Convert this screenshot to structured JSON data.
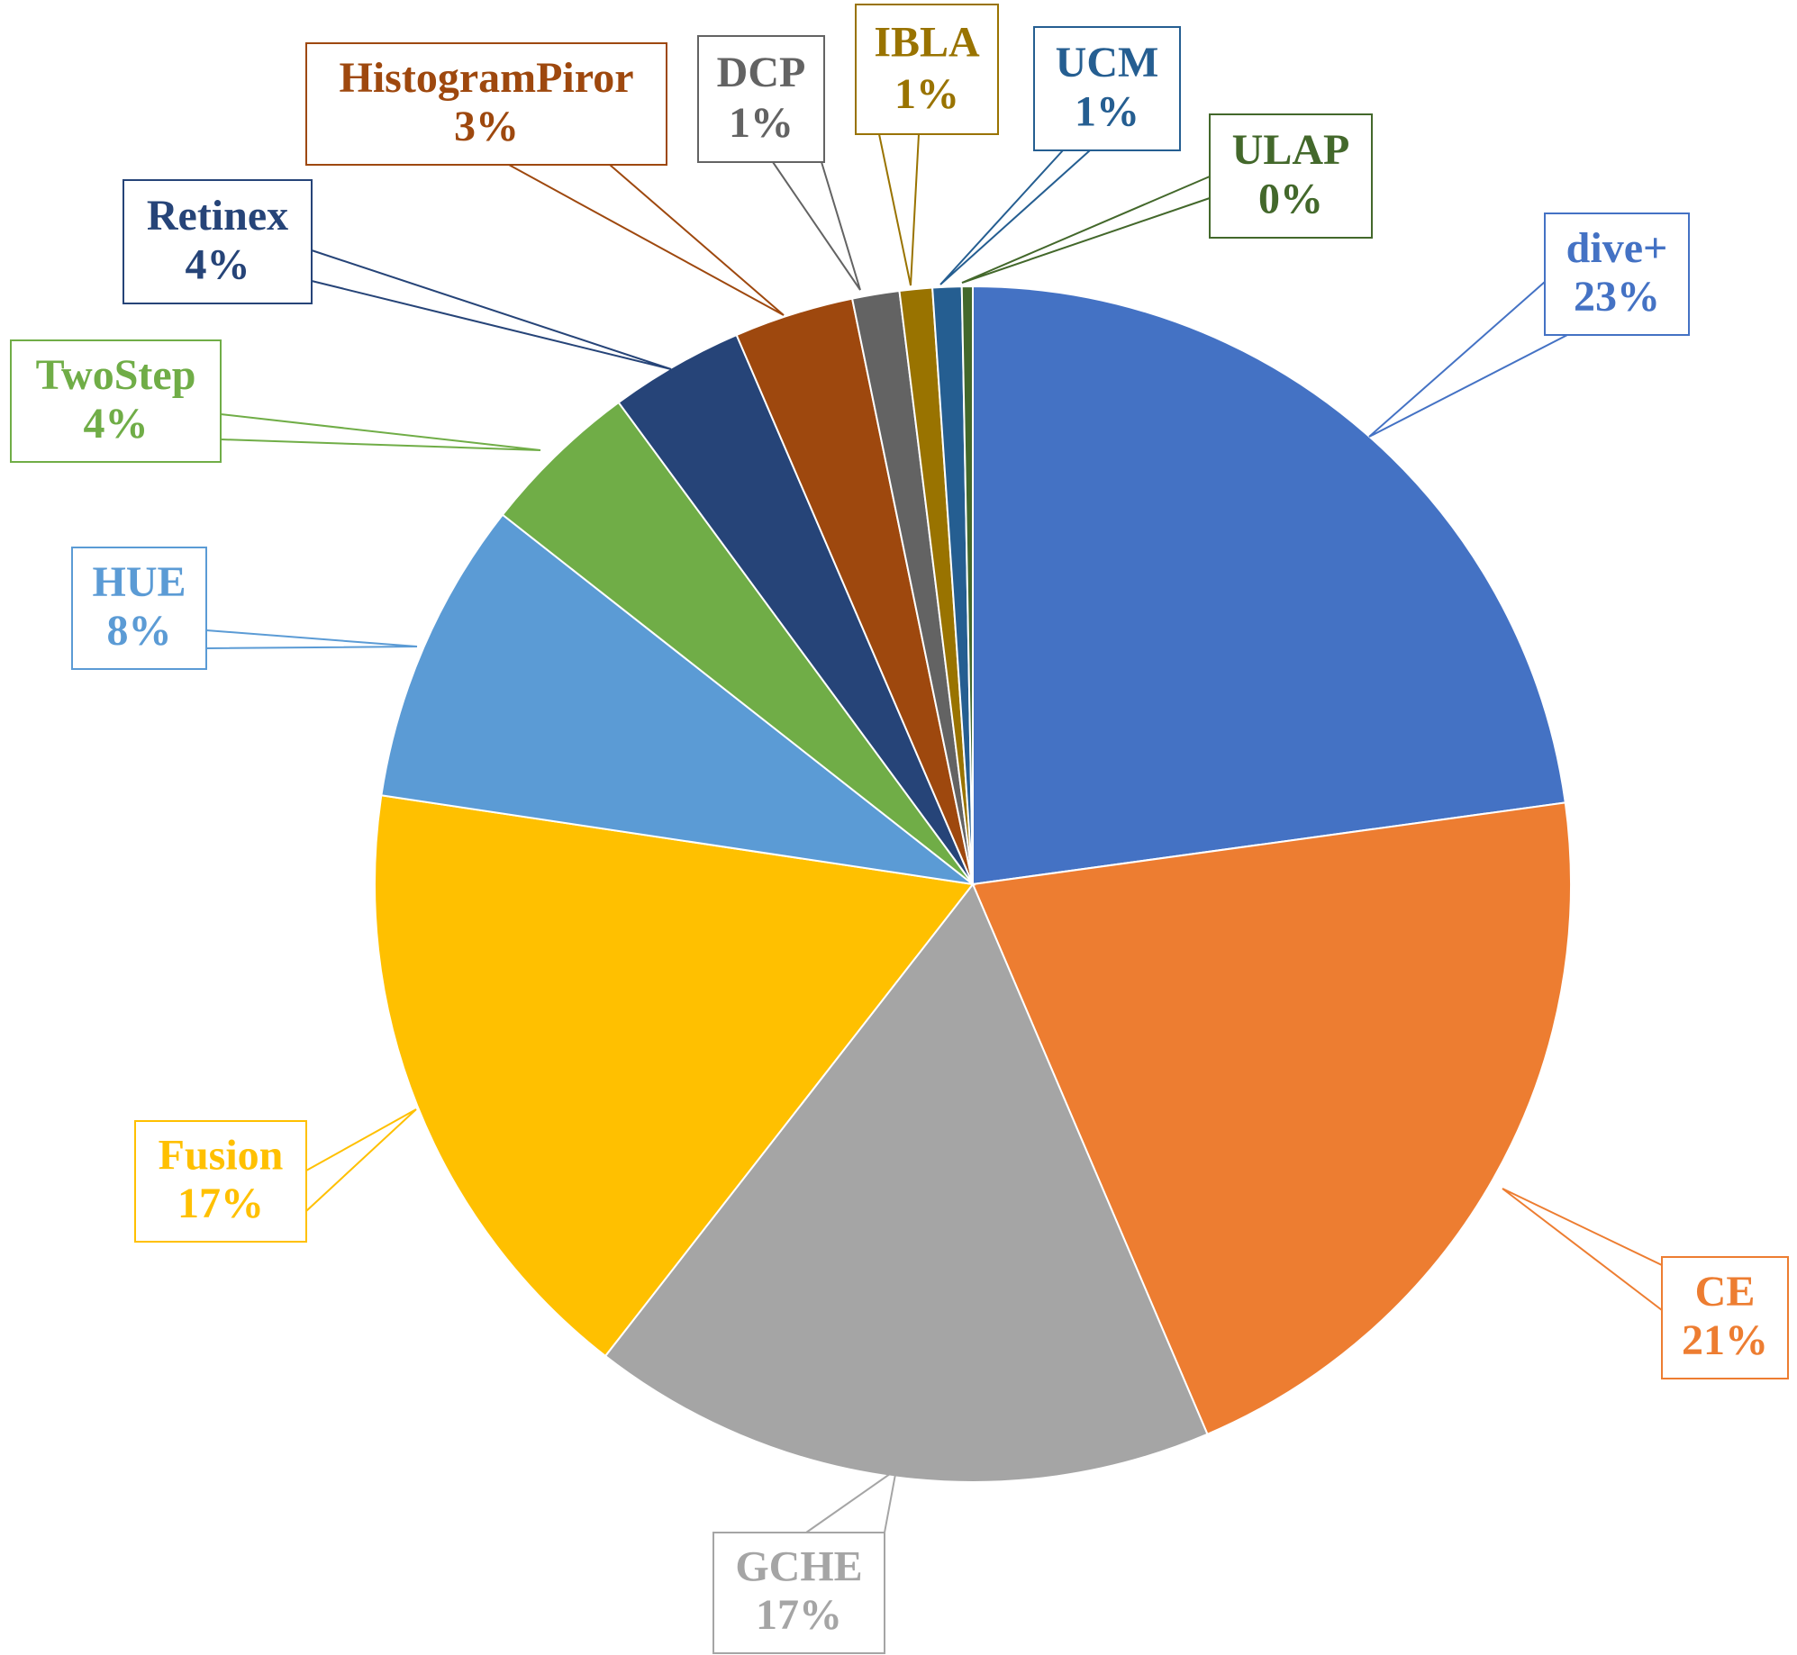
{
  "chart_data": {
    "type": "pie",
    "title": "",
    "slices": [
      {
        "label": "dive+",
        "pct_label": "23%",
        "value": 23.3,
        "color": "#4472C4"
      },
      {
        "label": "CE",
        "pct_label": "21%",
        "value": 21.2,
        "color": "#ED7D31"
      },
      {
        "label": "GCHE",
        "pct_label": "17%",
        "value": 17.3,
        "color": "#A5A5A5"
      },
      {
        "label": "Fusion",
        "pct_label": "17%",
        "value": 17.2,
        "color": "#FFC000"
      },
      {
        "label": "HUE",
        "pct_label": "8%",
        "value": 8.4,
        "color": "#5B9BD5"
      },
      {
        "label": "TwoStep",
        "pct_label": "4%",
        "value": 4.4,
        "color": "#70AD47"
      },
      {
        "label": "Retinex",
        "pct_label": "4%",
        "value": 3.7,
        "color": "#264478"
      },
      {
        "label": "HistogramPiror",
        "pct_label": "3%",
        "value": 3.3,
        "color": "#9E480E"
      },
      {
        "label": "DCP",
        "pct_label": "1%",
        "value": 1.3,
        "color": "#636363"
      },
      {
        "label": "IBLA",
        "pct_label": "1%",
        "value": 0.9,
        "color": "#997300"
      },
      {
        "label": "UCM",
        "pct_label": "1%",
        "value": 0.8,
        "color": "#255E91"
      },
      {
        "label": "ULAP",
        "pct_label": "0%",
        "value": 0.3,
        "color": "#43682B"
      }
    ],
    "start_angle": "12 o'clock",
    "direction": "clockwise",
    "legend": "none",
    "data_labels": "callouts"
  }
}
